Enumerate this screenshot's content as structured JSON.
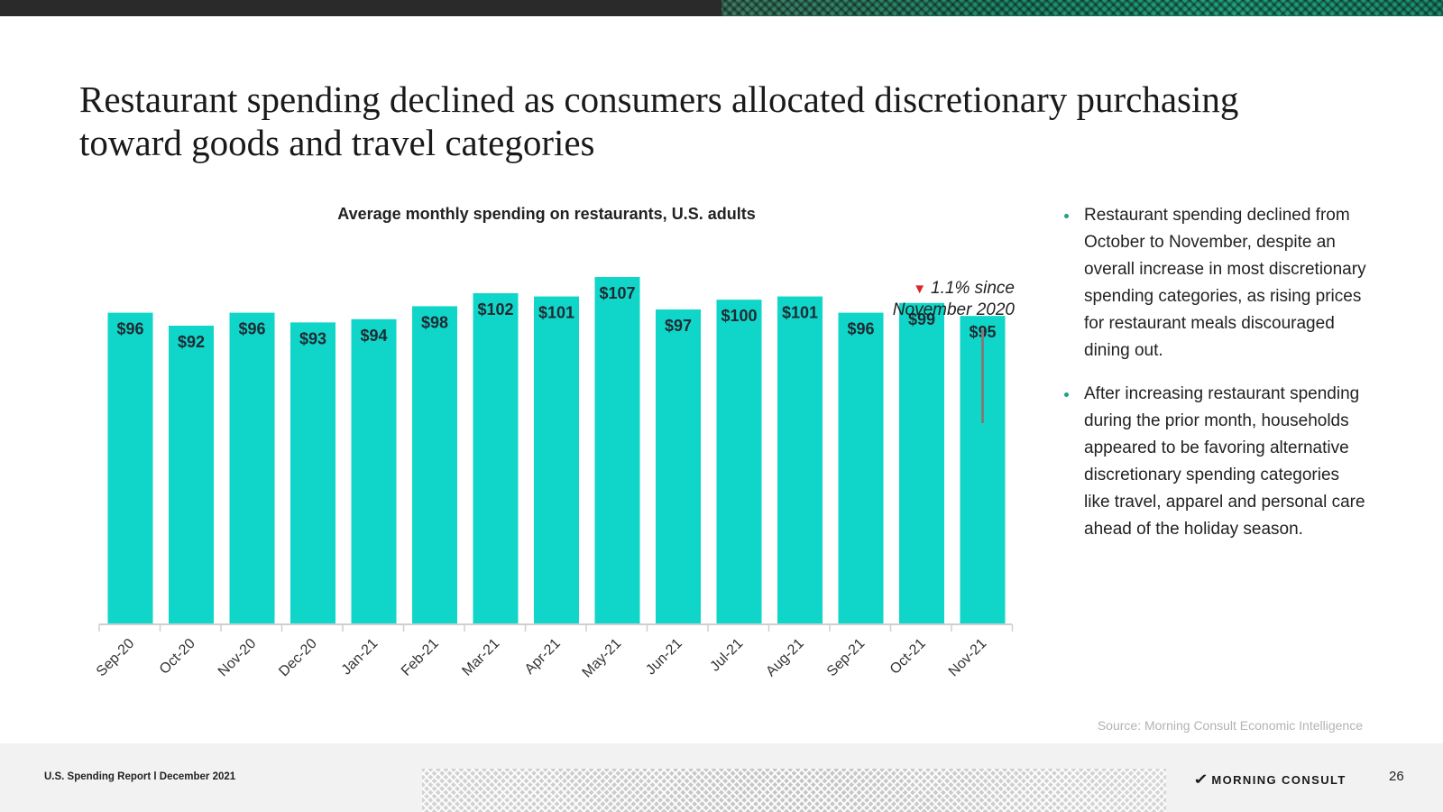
{
  "slide": {
    "title": "Restaurant spending declined as consumers allocated discretionary purchasing toward goods and travel categories",
    "annotation": {
      "line1": "1.1% since",
      "line2": "November 2020",
      "arrow": "▼"
    },
    "bullets": [
      "Restaurant spending declined from October to November, despite an overall increase in most discretionary spending categories, as rising prices for restaurant meals discouraged dining out.",
      "After increasing restaurant spending during the prior month, households appeared to be favoring alternative discretionary spending categories like travel, apparel and personal care ahead of the holiday season."
    ],
    "source": "Source: Morning Consult Economic Intelligence"
  },
  "footer": {
    "report": "U.S. Spending Report l December 2021",
    "logo_text": "MORNING CONSULT",
    "page_number": "26"
  },
  "colors": {
    "bar": "#0fd6c8",
    "bullet": "#1fa184",
    "down_arrow": "#d9262e"
  },
  "chart_data": {
    "type": "bar",
    "title": "Average monthly spending on restaurants, U.S. adults",
    "xlabel": "",
    "ylabel": "",
    "categories": [
      "Sep-20",
      "Oct-20",
      "Nov-20",
      "Dec-20",
      "Jan-21",
      "Feb-21",
      "Mar-21",
      "Apr-21",
      "May-21",
      "Jun-21",
      "Jul-21",
      "Aug-21",
      "Sep-21",
      "Oct-21",
      "Nov-21"
    ],
    "values": [
      96,
      92,
      96,
      93,
      94,
      98,
      102,
      101,
      107,
      97,
      100,
      101,
      96,
      99,
      95
    ],
    "labels": [
      "$96",
      "$92",
      "$96",
      "$93",
      "$94",
      "$98",
      "$102",
      "$101",
      "$107",
      "$97",
      "$100",
      "$101",
      "$96",
      "$99",
      "$95"
    ],
    "grid": false,
    "legend": "none"
  }
}
